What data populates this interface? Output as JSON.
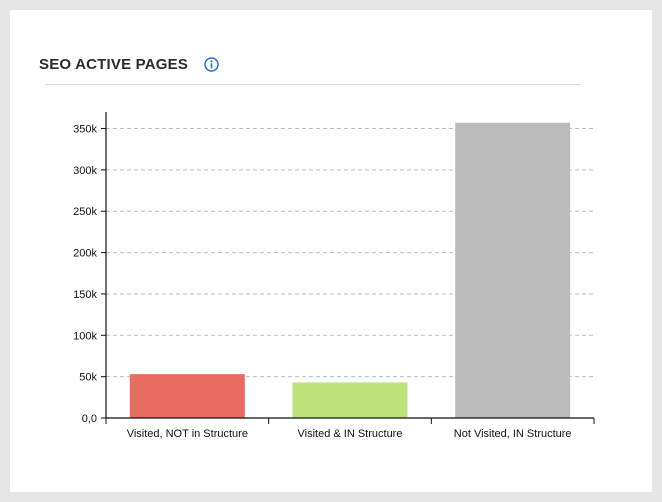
{
  "header": {
    "title": "SEO ACTIVE PAGES",
    "info_icon": "info-circle-icon"
  },
  "chart_data": {
    "type": "bar",
    "title": "SEO ACTIVE PAGES",
    "xlabel": "",
    "ylabel": "",
    "categories": [
      "Visited, NOT in Structure",
      "Visited & IN Structure",
      "Not Visited, IN Structure"
    ],
    "values": [
      53000,
      43000,
      357000
    ],
    "colors": [
      "#e86c60",
      "#bde37c",
      "#bbbbbb"
    ],
    "ylim": [
      0,
      370000
    ],
    "yticks": [
      0,
      50000,
      100000,
      150000,
      200000,
      250000,
      300000,
      350000
    ],
    "ytick_labels": [
      "0,0",
      "50k",
      "100k",
      "150k",
      "200k",
      "250k",
      "300k",
      "350k"
    ],
    "grid": true,
    "legend": "none",
    "colors_theme": {
      "axis": "#111111",
      "grid": "#bdbdbd",
      "accent": "#2f6fb5"
    }
  }
}
